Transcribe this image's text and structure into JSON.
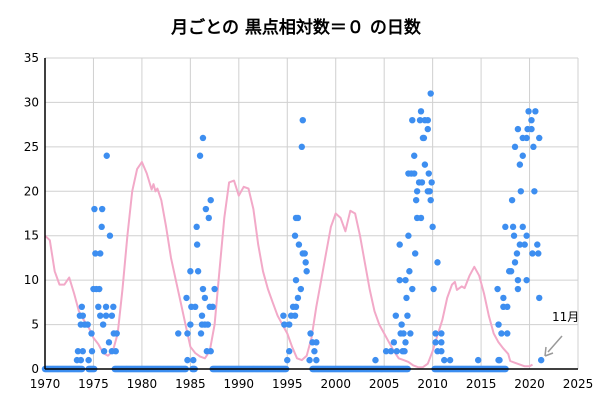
{
  "chart_data": {
    "type": "scatter",
    "title": "月ごとの 黒点相対数＝０ の日数",
    "xlabel": "",
    "ylabel": "",
    "xlim": [
      1970,
      2025
    ],
    "ylim": [
      0,
      35
    ],
    "xticks": [
      "1970",
      "1975",
      "1980",
      "1985",
      "1990",
      "1995",
      "2000",
      "2005",
      "2010",
      "2015",
      "2020",
      "2025"
    ],
    "yticks": [
      "0",
      "5",
      "10",
      "15",
      "20",
      "25",
      "30",
      "35"
    ],
    "grid": true,
    "colors": {
      "points": "#3d8ef0",
      "line": "#f2a9c8",
      "grid": "#d0d0d0",
      "arrow": "#999999"
    },
    "annotation": {
      "text": "11月",
      "x": 2020.9,
      "y": 1
    },
    "series": [
      {
        "name": "days_with_zero_sunspots",
        "type": "scatter",
        "zero_ranges": [
          [
            1970.0,
            1973.9
          ],
          [
            1974.5,
            1975.1
          ],
          [
            1977.2,
            1984.6
          ],
          [
            1985.2,
            1985.5
          ],
          [
            1987.3,
            1994.9
          ],
          [
            1997.6,
            2007.5
          ],
          [
            2010.2,
            2017.6
          ]
        ],
        "points": [
          [
            1976.37,
            24
          ],
          [
            1975.1,
            18
          ],
          [
            1975.9,
            18
          ],
          [
            1975.85,
            16
          ],
          [
            1976.7,
            15
          ],
          [
            1975.2,
            13
          ],
          [
            1975.7,
            13
          ],
          [
            1975.0,
            9
          ],
          [
            1975.3,
            9
          ],
          [
            1975.6,
            9
          ],
          [
            1973.8,
            7
          ],
          [
            1973.6,
            6
          ],
          [
            1973.9,
            6
          ],
          [
            1973.7,
            5
          ],
          [
            1974.1,
            5
          ],
          [
            1974.4,
            5
          ],
          [
            1974.8,
            4
          ],
          [
            1973.4,
            2
          ],
          [
            1973.9,
            2
          ],
          [
            1973.3,
            1
          ],
          [
            1973.7,
            1
          ],
          [
            1974.5,
            1
          ],
          [
            1975.5,
            7
          ],
          [
            1976.3,
            7
          ],
          [
            1977.05,
            7
          ],
          [
            1975.7,
            6
          ],
          [
            1976.3,
            6
          ],
          [
            1976.9,
            6
          ],
          [
            1976.0,
            5
          ],
          [
            1977.1,
            4
          ],
          [
            1977.4,
            4
          ],
          [
            1976.6,
            3
          ],
          [
            1976.1,
            2
          ],
          [
            1976.9,
            2
          ],
          [
            1977.3,
            2
          ],
          [
            1974.85,
            2
          ],
          [
            1986.0,
            24
          ],
          [
            1986.3,
            26
          ],
          [
            1987.1,
            19
          ],
          [
            1986.6,
            18
          ],
          [
            1986.9,
            17
          ],
          [
            1985.65,
            16
          ],
          [
            1985.7,
            14
          ],
          [
            1985.0,
            11
          ],
          [
            1985.8,
            11
          ],
          [
            1986.3,
            9
          ],
          [
            1987.5,
            9
          ],
          [
            1984.6,
            8
          ],
          [
            1986.5,
            8
          ],
          [
            1985.1,
            7
          ],
          [
            1985.5,
            7
          ],
          [
            1987.0,
            7
          ],
          [
            1987.3,
            7
          ],
          [
            1986.2,
            6
          ],
          [
            1985.0,
            5
          ],
          [
            1986.2,
            5
          ],
          [
            1986.5,
            5
          ],
          [
            1986.8,
            5
          ],
          [
            1983.75,
            4
          ],
          [
            1984.7,
            4
          ],
          [
            1986.1,
            4
          ],
          [
            1986.7,
            2
          ],
          [
            1987.1,
            2
          ],
          [
            1984.7,
            1
          ],
          [
            1985.3,
            1
          ],
          [
            1996.6,
            28
          ],
          [
            1996.5,
            25
          ],
          [
            1995.9,
            17
          ],
          [
            1996.1,
            17
          ],
          [
            1995.8,
            15
          ],
          [
            1996.2,
            14
          ],
          [
            1996.6,
            13
          ],
          [
            1996.8,
            13
          ],
          [
            1996.9,
            12
          ],
          [
            1997.0,
            11
          ],
          [
            1995.9,
            10
          ],
          [
            1996.4,
            9
          ],
          [
            1996.1,
            8
          ],
          [
            1995.6,
            7
          ],
          [
            1995.9,
            7
          ],
          [
            1994.6,
            6
          ],
          [
            1995.4,
            6
          ],
          [
            1995.8,
            6
          ],
          [
            1994.7,
            5
          ],
          [
            1995.2,
            5
          ],
          [
            1997.4,
            4
          ],
          [
            1997.6,
            3
          ],
          [
            1998.0,
            3
          ],
          [
            1995.2,
            2
          ],
          [
            1997.8,
            2
          ],
          [
            1995.0,
            1
          ],
          [
            1997.3,
            1
          ],
          [
            1998.0,
            1
          ],
          [
            2009.8,
            31
          ],
          [
            2008.8,
            29
          ],
          [
            2007.9,
            28
          ],
          [
            2008.7,
            28
          ],
          [
            2009.2,
            28
          ],
          [
            2009.5,
            28
          ],
          [
            2009.5,
            27
          ],
          [
            2009.0,
            26
          ],
          [
            2009.1,
            26
          ],
          [
            2008.1,
            24
          ],
          [
            2009.2,
            23
          ],
          [
            2007.5,
            22
          ],
          [
            2007.8,
            22
          ],
          [
            2008.1,
            22
          ],
          [
            2009.6,
            22
          ],
          [
            2008.6,
            21
          ],
          [
            2008.9,
            21
          ],
          [
            2009.9,
            21
          ],
          [
            2008.4,
            20
          ],
          [
            2009.5,
            20
          ],
          [
            2009.7,
            20
          ],
          [
            2008.3,
            19
          ],
          [
            2009.8,
            19
          ],
          [
            2008.4,
            17
          ],
          [
            2008.8,
            17
          ],
          [
            2010.0,
            16
          ],
          [
            2007.5,
            15
          ],
          [
            2006.6,
            14
          ],
          [
            2008.2,
            13
          ],
          [
            2010.5,
            12
          ],
          [
            2007.6,
            11
          ],
          [
            2006.6,
            10
          ],
          [
            2007.2,
            10
          ],
          [
            2007.9,
            9
          ],
          [
            2010.1,
            9
          ],
          [
            2007.3,
            8
          ],
          [
            2006.2,
            6
          ],
          [
            2007.4,
            6
          ],
          [
            2006.8,
            5
          ],
          [
            2006.7,
            4
          ],
          [
            2007.0,
            4
          ],
          [
            2007.7,
            4
          ],
          [
            2010.3,
            4
          ],
          [
            2010.9,
            4
          ],
          [
            2006.0,
            3
          ],
          [
            2007.2,
            3
          ],
          [
            2010.3,
            3
          ],
          [
            2010.9,
            3
          ],
          [
            2005.2,
            2
          ],
          [
            2005.7,
            2
          ],
          [
            2006.3,
            2
          ],
          [
            2006.9,
            2
          ],
          [
            2007.1,
            2
          ],
          [
            2010.5,
            2
          ],
          [
            2010.9,
            2
          ],
          [
            2004.1,
            1
          ],
          [
            2011.2,
            1
          ],
          [
            2011.8,
            1
          ],
          [
            2014.7,
            1
          ],
          [
            2016.9,
            1
          ],
          [
            2019.9,
            29
          ],
          [
            2020.6,
            29
          ],
          [
            2020.2,
            28
          ],
          [
            2018.8,
            27
          ],
          [
            2019.8,
            27
          ],
          [
            2020.2,
            27
          ],
          [
            2019.3,
            26
          ],
          [
            2019.7,
            26
          ],
          [
            2021.0,
            26
          ],
          [
            2018.5,
            25
          ],
          [
            2020.4,
            25
          ],
          [
            2019.3,
            24
          ],
          [
            2019.0,
            23
          ],
          [
            2019.1,
            20
          ],
          [
            2020.5,
            20
          ],
          [
            2018.2,
            19
          ],
          [
            2017.5,
            16
          ],
          [
            2018.3,
            16
          ],
          [
            2019.3,
            16
          ],
          [
            2018.4,
            15
          ],
          [
            2019.7,
            15
          ],
          [
            2019.0,
            14
          ],
          [
            2019.5,
            14
          ],
          [
            2020.8,
            14
          ],
          [
            2018.7,
            13
          ],
          [
            2020.3,
            13
          ],
          [
            2020.9,
            13
          ],
          [
            2018.5,
            12
          ],
          [
            2017.9,
            11
          ],
          [
            2018.1,
            11
          ],
          [
            2018.8,
            10
          ],
          [
            2019.7,
            10
          ],
          [
            2018.8,
            9
          ],
          [
            2016.7,
            9
          ],
          [
            2017.3,
            8
          ],
          [
            2021.0,
            8
          ],
          [
            2017.3,
            7
          ],
          [
            2017.7,
            7
          ],
          [
            2016.8,
            5
          ],
          [
            2017.1,
            4
          ],
          [
            2017.7,
            4
          ],
          [
            2016.8,
            1
          ],
          [
            2021.2,
            1
          ]
        ]
      },
      {
        "name": "smoothed_sunspot_number_scaled",
        "type": "line",
        "points": [
          [
            1970.0,
            15
          ],
          [
            1970.5,
            14.5
          ],
          [
            1971,
            11
          ],
          [
            1971.5,
            9.5
          ],
          [
            1972,
            9.5
          ],
          [
            1972.5,
            10.3
          ],
          [
            1973,
            8.5
          ],
          [
            1973.5,
            6.5
          ],
          [
            1974,
            5.5
          ],
          [
            1974.5,
            4.7
          ],
          [
            1975,
            3.5
          ],
          [
            1975.5,
            2.8
          ],
          [
            1976,
            1.8
          ],
          [
            1976.5,
            1.5
          ],
          [
            1977,
            2
          ],
          [
            1977.5,
            4
          ],
          [
            1978,
            9
          ],
          [
            1978.5,
            15
          ],
          [
            1979,
            20
          ],
          [
            1979.5,
            22.5
          ],
          [
            1980,
            23.3
          ],
          [
            1980.5,
            22
          ],
          [
            1981,
            20.2
          ],
          [
            1981.2,
            20.8
          ],
          [
            1981.4,
            20
          ],
          [
            1981.6,
            20.3
          ],
          [
            1982,
            19
          ],
          [
            1982.5,
            16
          ],
          [
            1983,
            12.5
          ],
          [
            1983.5,
            10
          ],
          [
            1984,
            7.5
          ],
          [
            1984.5,
            5
          ],
          [
            1985,
            2.5
          ],
          [
            1985.5,
            1.8
          ],
          [
            1986,
            1.4
          ],
          [
            1986.5,
            1.2
          ],
          [
            1987,
            2
          ],
          [
            1987.5,
            5
          ],
          [
            1988,
            11
          ],
          [
            1988.5,
            17
          ],
          [
            1989,
            21
          ],
          [
            1989.5,
            21.2
          ],
          [
            1990,
            19.5
          ],
          [
            1990.5,
            20.5
          ],
          [
            1991,
            20.3
          ],
          [
            1991.5,
            18
          ],
          [
            1992,
            14
          ],
          [
            1992.5,
            11
          ],
          [
            1993,
            9
          ],
          [
            1993.5,
            7.5
          ],
          [
            1994,
            6
          ],
          [
            1994.5,
            5
          ],
          [
            1995,
            4
          ],
          [
            1995.5,
            2.5
          ],
          [
            1996,
            1.2
          ],
          [
            1996.5,
            1
          ],
          [
            1997,
            1.5
          ],
          [
            1997.5,
            3.5
          ],
          [
            1998,
            7
          ],
          [
            1998.5,
            10
          ],
          [
            1999,
            13
          ],
          [
            1999.5,
            16
          ],
          [
            2000,
            17.5
          ],
          [
            2000.5,
            17
          ],
          [
            2001,
            15.5
          ],
          [
            2001.5,
            17.8
          ],
          [
            2002,
            17.5
          ],
          [
            2002.5,
            15
          ],
          [
            2003,
            12
          ],
          [
            2003.5,
            9
          ],
          [
            2004,
            6.5
          ],
          [
            2004.5,
            5
          ],
          [
            2005,
            4
          ],
          [
            2005.5,
            3
          ],
          [
            2006,
            2
          ],
          [
            2006.5,
            1.2
          ],
          [
            2007,
            1
          ],
          [
            2007.5,
            0.8
          ],
          [
            2008,
            0.4
          ],
          [
            2008.5,
            0.2
          ],
          [
            2009,
            0.2
          ],
          [
            2009.5,
            0.6
          ],
          [
            2010,
            2
          ],
          [
            2010.5,
            3.8
          ],
          [
            2011,
            5.5
          ],
          [
            2011.5,
            8
          ],
          [
            2012,
            9.5
          ],
          [
            2012.3,
            9.8
          ],
          [
            2012.5,
            8.9
          ],
          [
            2013,
            9.3
          ],
          [
            2013.3,
            9.1
          ],
          [
            2013.8,
            10.5
          ],
          [
            2014.3,
            11.5
          ],
          [
            2014.8,
            10.5
          ],
          [
            2015.3,
            8.5
          ],
          [
            2015.8,
            6
          ],
          [
            2016.3,
            4
          ],
          [
            2016.8,
            3
          ],
          [
            2017.3,
            2.3
          ],
          [
            2017.8,
            1.7
          ],
          [
            2018,
            0.9
          ],
          [
            2018.5,
            0.7
          ],
          [
            2019,
            0.5
          ],
          [
            2019.5,
            0.3
          ],
          [
            2020,
            0.3
          ],
          [
            2020.3,
            0.5
          ]
        ]
      }
    ]
  }
}
